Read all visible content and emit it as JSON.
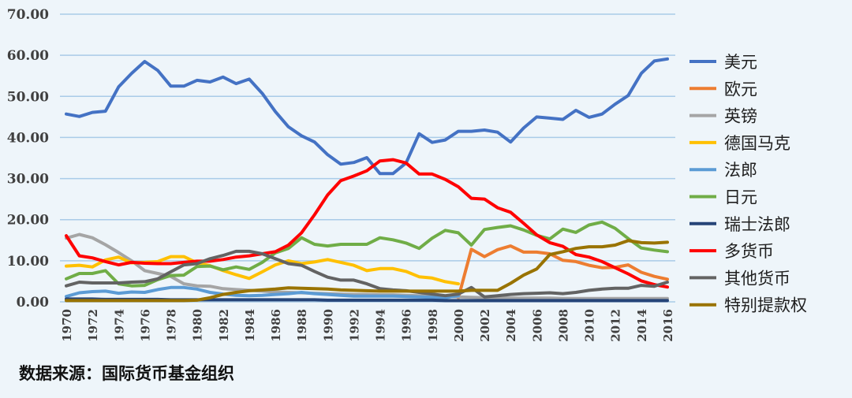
{
  "chart_data": {
    "type": "line",
    "title": "",
    "xlabel": "",
    "ylabel": "",
    "ylim": [
      0,
      70
    ],
    "yticks": [
      "0.00",
      "10.00",
      "20.00",
      "30.00",
      "40.00",
      "50.00",
      "60.00",
      "70.00"
    ],
    "ytick_values": [
      0,
      10,
      20,
      30,
      40,
      50,
      60,
      70
    ],
    "x": [
      1970,
      1971,
      1972,
      1973,
      1974,
      1975,
      1976,
      1977,
      1978,
      1979,
      1980,
      1981,
      1982,
      1983,
      1984,
      1985,
      1986,
      1987,
      1988,
      1989,
      1990,
      1991,
      1992,
      1993,
      1994,
      1995,
      1996,
      1997,
      1998,
      1999,
      2000,
      2001,
      2002,
      2003,
      2004,
      2005,
      2006,
      2007,
      2008,
      2009,
      2010,
      2011,
      2012,
      2013,
      2014,
      2015,
      2016
    ],
    "xticks": [
      "1970",
      "1972",
      "1974",
      "1976",
      "1978",
      "1980",
      "1982",
      "1984",
      "1986",
      "1988",
      "1990",
      "1992",
      "1994",
      "1996",
      "1998",
      "2000",
      "2002",
      "2004",
      "2006",
      "2008",
      "2010",
      "2012",
      "2014",
      "2016"
    ],
    "grid": true,
    "legend_position": "right",
    "series": [
      {
        "name": "美元",
        "color": "#4472C4",
        "values": [
          45.7,
          45.1,
          46.1,
          46.4,
          52.3,
          55.6,
          58.5,
          56.3,
          52.5,
          52.5,
          53.9,
          53.5,
          54.7,
          53.1,
          54.2,
          50.7,
          46.3,
          42.6,
          40.4,
          38.9,
          35.8,
          33.5,
          33.9,
          35.1,
          31.2,
          31.2,
          33.8,
          40.9,
          38.8,
          39.4,
          41.5,
          41.5,
          41.8,
          41.3,
          38.9,
          42.3,
          45.0,
          44.7,
          44.4,
          46.6,
          44.9,
          45.7,
          48.1,
          50.2,
          55.6,
          58.6,
          59.1
        ]
      },
      {
        "name": "欧元",
        "color": "#ED7D31",
        "values": [
          null,
          null,
          null,
          null,
          null,
          null,
          null,
          null,
          null,
          null,
          null,
          null,
          null,
          null,
          null,
          null,
          null,
          null,
          null,
          null,
          null,
          null,
          null,
          null,
          null,
          null,
          null,
          null,
          null,
          null,
          1.0,
          12.8,
          11.0,
          12.7,
          13.6,
          12.1,
          12.1,
          11.7,
          10.1,
          9.8,
          8.9,
          8.3,
          8.4,
          9.0,
          7.2,
          6.2,
          5.5
        ]
      },
      {
        "name": "英镑",
        "color": "#A5A5A5",
        "values": [
          15.5,
          16.4,
          15.6,
          13.9,
          12.0,
          10.0,
          7.6,
          6.9,
          6.2,
          4.4,
          3.9,
          3.8,
          3.2,
          3.0,
          2.8,
          2.6,
          2.4,
          2.3,
          2.2,
          2.1,
          2.0,
          1.9,
          1.8,
          1.8,
          1.7,
          1.7,
          1.6,
          1.5,
          1.4,
          1.3,
          1.2,
          1.1,
          1.0,
          1.0,
          0.9,
          0.9,
          0.9,
          0.9,
          0.8,
          0.8,
          0.8,
          0.8,
          0.8,
          0.8,
          0.8,
          0.8,
          0.8
        ]
      },
      {
        "name": "德国马克",
        "color": "#FFC000",
        "values": [
          8.7,
          8.9,
          8.5,
          10.2,
          10.9,
          9.5,
          9.6,
          9.8,
          11.0,
          11.0,
          9.5,
          8.8,
          7.6,
          6.6,
          5.7,
          7.3,
          9.0,
          10.0,
          9.3,
          9.7,
          10.3,
          9.6,
          8.9,
          7.6,
          8.1,
          8.1,
          7.4,
          6.1,
          5.8,
          4.9,
          4.4,
          null,
          null,
          null,
          null,
          null,
          null,
          null,
          null,
          null,
          null,
          null,
          null,
          null,
          null,
          null,
          null
        ]
      },
      {
        "name": "法郎",
        "color": "#5B9BD5",
        "values": [
          1.3,
          2.2,
          2.5,
          2.6,
          2.1,
          2.4,
          2.3,
          3.0,
          3.5,
          3.5,
          3.1,
          2.3,
          1.9,
          1.6,
          1.5,
          1.6,
          1.8,
          2.0,
          2.3,
          2.0,
          1.8,
          1.6,
          1.4,
          1.4,
          1.4,
          1.4,
          1.3,
          1.2,
          1.1,
          1.0,
          1.5,
          null,
          null,
          null,
          null,
          null,
          null,
          null,
          null,
          null,
          null,
          null,
          null,
          null,
          null,
          null,
          null
        ]
      },
      {
        "name": "日元",
        "color": "#70AD47",
        "values": [
          5.6,
          6.9,
          6.9,
          7.6,
          4.4,
          3.9,
          4.0,
          5.4,
          6.4,
          6.5,
          8.6,
          8.7,
          7.8,
          8.5,
          7.9,
          9.6,
          11.9,
          13.0,
          15.6,
          14.0,
          13.6,
          14.0,
          14.0,
          14.0,
          15.6,
          15.1,
          14.3,
          13.0,
          15.5,
          17.4,
          16.8,
          13.8,
          17.6,
          18.1,
          18.5,
          17.5,
          16.2,
          15.3,
          17.7,
          16.9,
          18.7,
          19.4,
          17.9,
          15.4,
          13.1,
          12.6,
          12.2
        ]
      },
      {
        "name": "瑞士法郎",
        "color": "#264478",
        "values": [
          0.7,
          0.7,
          0.7,
          0.6,
          0.6,
          0.6,
          0.6,
          0.6,
          0.5,
          0.5,
          0.5,
          0.5,
          0.5,
          0.5,
          0.5,
          0.5,
          0.5,
          0.5,
          0.5,
          0.5,
          0.4,
          0.4,
          0.4,
          0.4,
          0.4,
          0.4,
          0.4,
          0.4,
          0.4,
          0.3,
          0.3,
          0.3,
          0.3,
          0.3,
          0.3,
          0.3,
          0.3,
          0.3,
          0.3,
          0.3,
          0.3,
          0.3,
          0.3,
          0.3,
          0.3,
          0.3,
          0.3
        ]
      },
      {
        "name": "多货币",
        "color": "#FF0000",
        "values": [
          16.1,
          11.2,
          10.7,
          9.8,
          9.0,
          9.6,
          9.4,
          9.3,
          9.3,
          9.6,
          9.9,
          9.9,
          10.3,
          10.9,
          11.2,
          11.7,
          12.2,
          13.8,
          16.8,
          21.2,
          26.0,
          29.5,
          30.6,
          31.9,
          34.3,
          34.6,
          33.8,
          31.1,
          31.1,
          29.8,
          28.0,
          25.2,
          25.0,
          22.9,
          21.8,
          19.1,
          16.3,
          14.4,
          13.5,
          11.5,
          10.9,
          9.8,
          8.3,
          6.8,
          5.1,
          4.2,
          3.6
        ]
      },
      {
        "name": "其他货币",
        "color": "#636363",
        "values": [
          3.9,
          4.8,
          4.6,
          4.6,
          4.6,
          4.8,
          4.9,
          5.6,
          7.3,
          9.0,
          9.3,
          10.5,
          11.3,
          12.3,
          12.3,
          11.7,
          10.5,
          9.3,
          8.9,
          7.4,
          6.0,
          5.3,
          5.3,
          4.4,
          3.2,
          2.9,
          2.7,
          2.3,
          1.9,
          1.5,
          1.9,
          3.5,
          1.2,
          1.5,
          1.8,
          2.0,
          2.1,
          2.2,
          2.0,
          2.3,
          2.8,
          3.1,
          3.3,
          3.3,
          4.0,
          3.8,
          4.8
        ]
      },
      {
        "name": "特别提款权",
        "color": "#997300",
        "values": [
          0.3,
          0.3,
          0.3,
          0.3,
          0.3,
          0.3,
          0.3,
          0.3,
          0.3,
          0.3,
          0.4,
          1.0,
          1.8,
          2.3,
          2.7,
          2.9,
          3.1,
          3.4,
          3.3,
          3.2,
          3.1,
          2.9,
          2.8,
          2.7,
          2.6,
          2.6,
          2.6,
          2.6,
          2.6,
          2.6,
          2.6,
          2.8,
          2.8,
          2.8,
          4.5,
          6.5,
          8.0,
          11.5,
          12.2,
          13.0,
          13.4,
          13.4,
          13.8,
          14.9,
          14.4,
          14.3,
          14.5
        ]
      }
    ]
  },
  "source_note": "数据来源：国际货币基金组织",
  "colors": {
    "grid": "#A9CBE8",
    "background": "#EEF5FA"
  }
}
